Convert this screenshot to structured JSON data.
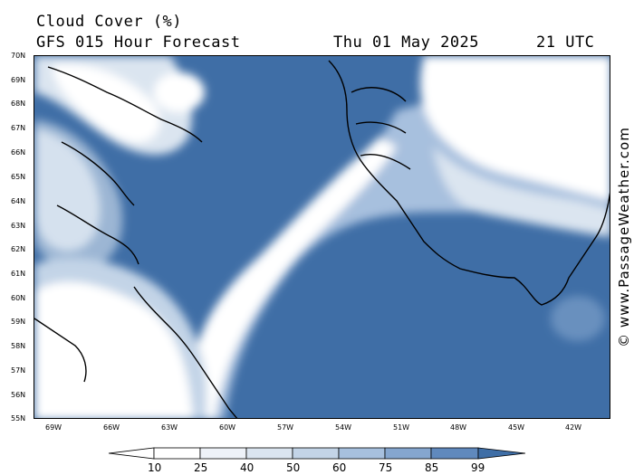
{
  "header": {
    "title": "Cloud Cover (%)",
    "subtitle": "GFS 015 Hour Forecast",
    "date": "Thu 01 May 2025",
    "time": "21 UTC"
  },
  "latitude_labels": [
    "70N",
    "69N",
    "68N",
    "67N",
    "66N",
    "65N",
    "64N",
    "63N",
    "62N",
    "61N",
    "60N",
    "59N",
    "58N",
    "57N",
    "56N",
    "55N"
  ],
  "longitude_labels": [
    "69W",
    "66W",
    "63W",
    "60W",
    "57W",
    "54W",
    "51W",
    "48W",
    "45W",
    "42W"
  ],
  "credit": "© www.PassageWeather.com",
  "legend": {
    "ticks": [
      "10",
      "25",
      "40",
      "50",
      "60",
      "75",
      "85",
      "99"
    ],
    "colors": [
      "#ffffff",
      "#eef2f8",
      "#dbe5f0",
      "#c3d4e7",
      "#a7c0de",
      "#85a6cf",
      "#6089bd",
      "#3f6ea6"
    ]
  },
  "colors": {
    "clear": "#3f6ea6",
    "mid": "#85a6cf",
    "light": "#dbe5f0",
    "overcast": "#ffffff",
    "coastline": "#000000"
  }
}
